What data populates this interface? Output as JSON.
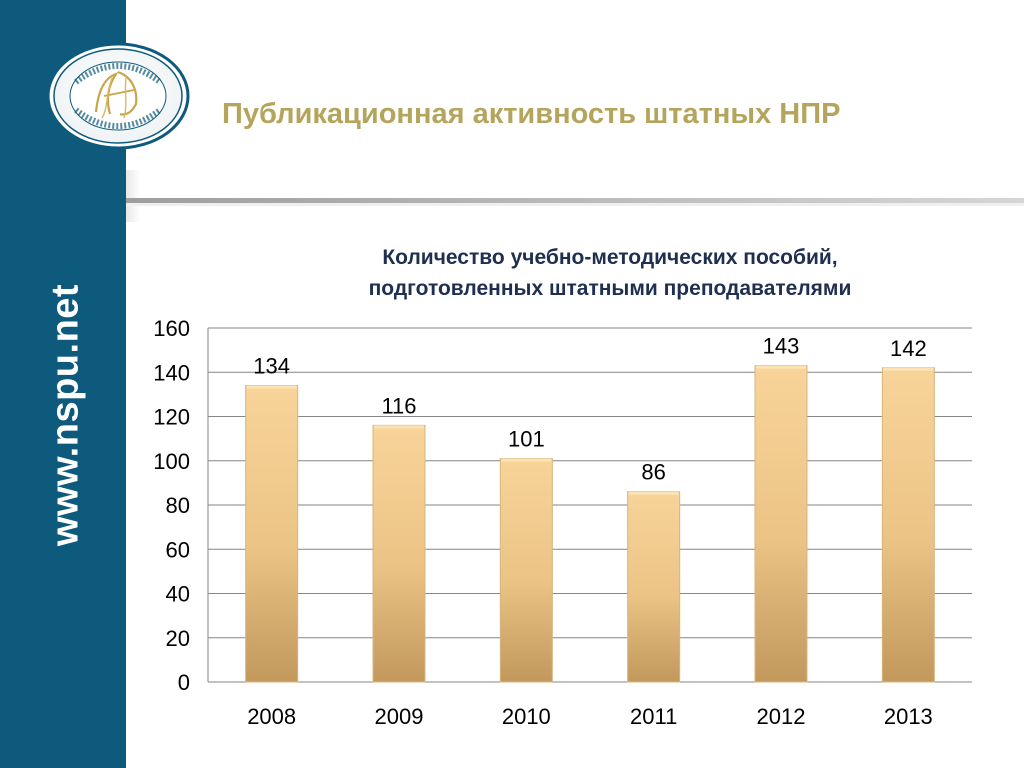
{
  "sidebar": {
    "url_text": "www.nspu.net",
    "logo_icon": "university-seal-icon"
  },
  "slide": {
    "title": "Публикационная активность штатных НПР"
  },
  "colors": {
    "sidebar": "#0e5a7c",
    "title": "#b5a45c",
    "chart_title": "#1f2f50",
    "bar_light": "#f7cf92",
    "bar_dark": "#c49a5e"
  },
  "chart_data": {
    "type": "bar",
    "title_lines": [
      "Количество учебно-методических пособий,",
      "подготовленных штатными преподавателями"
    ],
    "categories": [
      "2008",
      "2009",
      "2010",
      "2011",
      "2012",
      "2013"
    ],
    "values": [
      134,
      116,
      101,
      86,
      143,
      142
    ],
    "data_labels": [
      "134",
      "116",
      "101",
      "86",
      "143",
      "142"
    ],
    "ylim": [
      0,
      160
    ],
    "yticks": [
      0,
      20,
      40,
      60,
      80,
      100,
      120,
      140,
      160
    ],
    "grid": true,
    "legend": "none",
    "xlabel": "",
    "ylabel": ""
  }
}
